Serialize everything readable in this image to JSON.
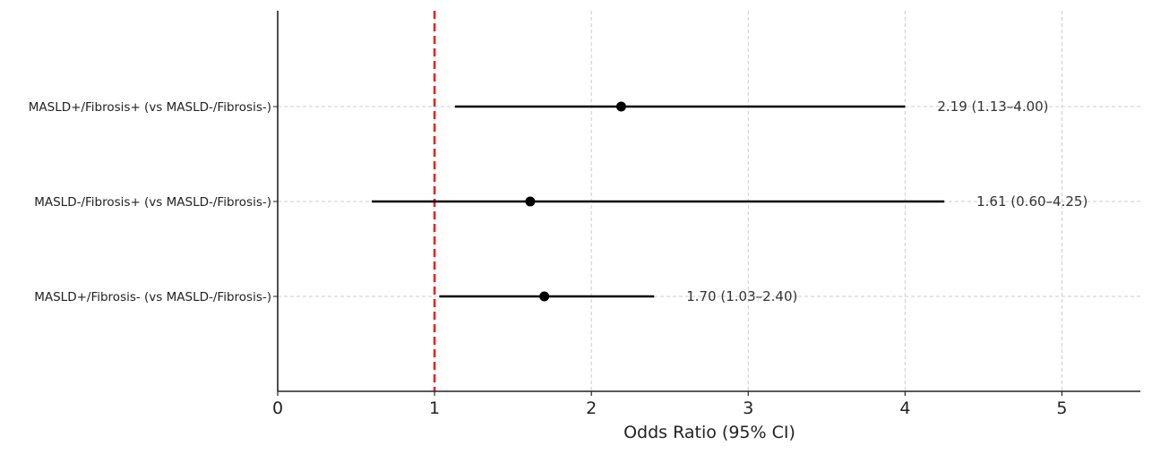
{
  "chart_data": {
    "type": "forest",
    "xlabel": "Odds Ratio (95% CI)",
    "xlim": [
      0,
      5.5
    ],
    "xticks": [
      0,
      1,
      2,
      3,
      4,
      5
    ],
    "reference_line": {
      "x": 1,
      "color": "#e8231f",
      "style": "dashed"
    },
    "grid": true,
    "rows": [
      {
        "label": "MASLD+/Fibrosis+ (vs MASLD-/Fibrosis-)",
        "or": 2.19,
        "lower": 1.13,
        "upper": 4.0,
        "text": "2.19 (1.13–4.00)"
      },
      {
        "label": "MASLD-/Fibrosis+ (vs MASLD-/Fibrosis-)",
        "or": 1.61,
        "lower": 0.6,
        "upper": 4.25,
        "text": "1.61 (0.60–4.25)"
      },
      {
        "label": "MASLD+/Fibrosis- (vs MASLD-/Fibrosis-)",
        "or": 1.7,
        "lower": 1.03,
        "upper": 2.4,
        "text": "1.70 (1.03–2.40)"
      }
    ],
    "colors": {
      "estimate": "#000000",
      "reference": "#e8231f",
      "grid": "#cccccc"
    }
  }
}
